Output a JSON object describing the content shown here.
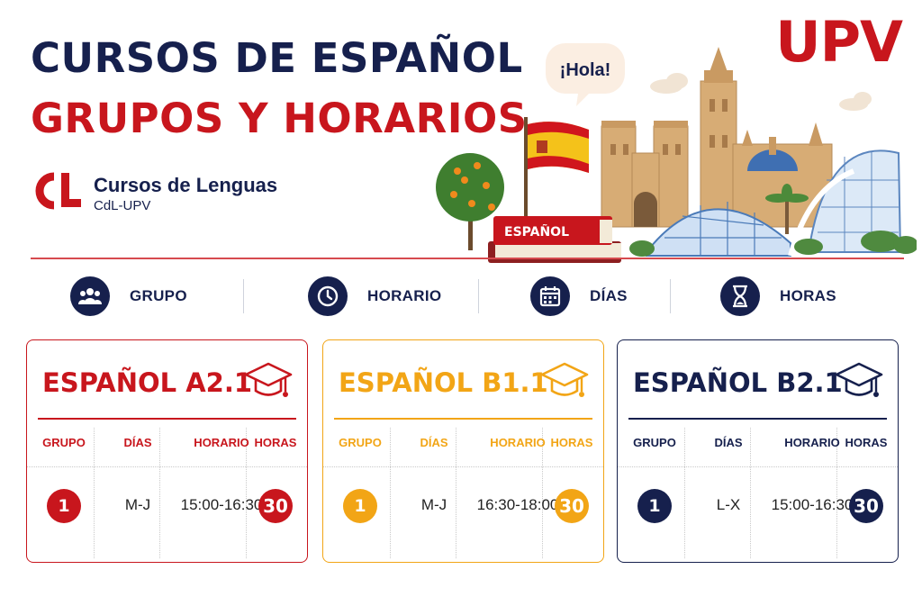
{
  "header": {
    "title_line1": "CURSOS DE ESPAÑOL",
    "title_line2": "GRUPOS Y HORARIOS",
    "university": "UPV",
    "org_name": "Cursos de Lenguas",
    "org_sub": "CdL-UPV"
  },
  "illustration": {
    "speech": "¡Hola!",
    "book_label": "ESPAÑOL"
  },
  "legend": [
    {
      "icon": "group-icon",
      "label": "GRUPO"
    },
    {
      "icon": "clock-icon",
      "label": "HORARIO"
    },
    {
      "icon": "calendar-icon",
      "label": "DÍAS"
    },
    {
      "icon": "hourglass-icon",
      "label": "HORAS"
    }
  ],
  "courses": [
    {
      "title": "ESPAÑOL A2.1",
      "color": "#c8161d",
      "headers": {
        "grupo": "GRUPO",
        "dias": "DÍAS",
        "horario": "HORARIO",
        "horas": "HORAS"
      },
      "row": {
        "grupo": "1",
        "dias": "M-J",
        "horario": "15:00-16:30",
        "horas": "30"
      }
    },
    {
      "title": "ESPAÑOL B1.1",
      "color": "#f2a516",
      "headers": {
        "grupo": "GRUPO",
        "dias": "DÍAS",
        "horario": "HORARIO",
        "horas": "HORAS"
      },
      "row": {
        "grupo": "1",
        "dias": "M-J",
        "horario": "16:30-18:00",
        "horas": "30"
      }
    },
    {
      "title": "ESPAÑOL B2.1",
      "color": "#16204d",
      "headers": {
        "grupo": "GRUPO",
        "dias": "DÍAS",
        "horario": "HORARIO",
        "horas": "HORAS"
      },
      "row": {
        "grupo": "1",
        "dias": "L-X",
        "horario": "15:00-16:30",
        "horas": "30"
      }
    }
  ],
  "colors": {
    "navy": "#16204d",
    "red": "#c8161d",
    "amber": "#f2a516"
  }
}
